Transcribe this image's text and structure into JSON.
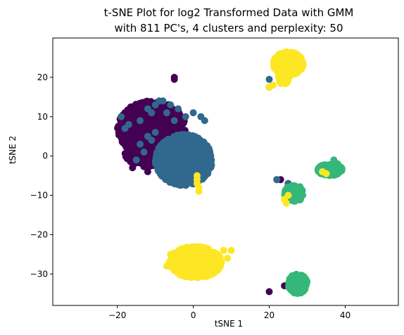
{
  "chart_data": {
    "type": "scatter",
    "title_lines": [
      "t-SNE Plot for log2 Transformed Data with GMM",
      "with 811 PC's, 4 clusters and perplexity: 50"
    ],
    "xlabel": "tSNE 1",
    "ylabel": "tSNE 2",
    "xlim": [
      -37,
      54
    ],
    "ylim": [
      -38,
      30
    ],
    "x_ticks": [
      -20,
      0,
      20,
      40
    ],
    "y_ticks": [
      -30,
      -20,
      -10,
      0,
      10,
      20
    ],
    "grid": false,
    "legend": "none",
    "clusters": [
      {
        "label": "0",
        "color": "#440154",
        "blobs": [
          {
            "cx": -11,
            "cy": 7,
            "rx": 9,
            "ry": 7,
            "n": 900
          },
          {
            "cx": -13,
            "cy": 1,
            "rx": 5,
            "ry": 4,
            "n": 150
          }
        ],
        "points": [
          [
            -5,
            19.5
          ],
          [
            -5,
            20
          ],
          [
            -16,
            -3
          ],
          [
            -16,
            -1.5
          ],
          [
            -12,
            -4
          ],
          [
            -8,
            -5
          ],
          [
            -3,
            3.5
          ],
          [
            22,
            -6
          ],
          [
            23,
            -6
          ],
          [
            25,
            -9.5
          ],
          [
            25,
            -7
          ],
          [
            20,
            -34.5
          ],
          [
            24,
            -33
          ]
        ]
      },
      {
        "label": "1",
        "color": "#31688e",
        "blobs": [
          {
            "cx": -2.5,
            "cy": -1,
            "rx": 7.5,
            "ry": 6.5,
            "n": 1200
          }
        ],
        "points": [
          [
            -14,
            9
          ],
          [
            -17,
            8
          ],
          [
            -19,
            10
          ],
          [
            -12,
            12
          ],
          [
            -10,
            13
          ],
          [
            -9,
            14
          ],
          [
            -8,
            14
          ],
          [
            -6,
            13
          ],
          [
            -7,
            11
          ],
          [
            -11,
            11
          ],
          [
            -5,
            9
          ],
          [
            -12,
            5
          ],
          [
            -11,
            4
          ],
          [
            -14,
            3
          ],
          [
            -13,
            1
          ],
          [
            -15,
            -1
          ],
          [
            -10,
            6
          ],
          [
            -18,
            7
          ],
          [
            3,
            9
          ],
          [
            2,
            10
          ],
          [
            0,
            11
          ],
          [
            -2,
            10
          ],
          [
            -4,
            12
          ],
          [
            20,
            19.5
          ],
          [
            20,
            17.5
          ],
          [
            22,
            -6
          ],
          [
            25,
            -7
          ],
          [
            24.5,
            -9
          ],
          [
            26,
            -9.5
          ],
          [
            26,
            -8
          ],
          [
            25.5,
            -10
          ],
          [
            27,
            -9
          ],
          [
            26.5,
            -33.5
          ],
          [
            26,
            -34
          ]
        ]
      },
      {
        "label": "2",
        "color": "#35b779",
        "blobs": [
          {
            "cx": 26.5,
            "cy": -9.5,
            "rx": 2.5,
            "ry": 2.2,
            "n": 120
          },
          {
            "cx": 36,
            "cy": -3.5,
            "rx": 3.2,
            "ry": 1.5,
            "n": 220
          },
          {
            "cx": 27.5,
            "cy": -32.5,
            "rx": 2.5,
            "ry": 2.5,
            "n": 180
          }
        ],
        "points": [
          [
            37,
            -1
          ],
          [
            38,
            -2
          ],
          [
            33.5,
            -3
          ],
          [
            34,
            -4
          ]
        ]
      },
      {
        "label": "3",
        "color": "#fde725",
        "blobs": [
          {
            "cx": 25,
            "cy": 23.5,
            "rx": 4,
            "ry": 3,
            "n": 320
          },
          {
            "cx": 24,
            "cy": 20,
            "rx": 1.6,
            "ry": 2,
            "n": 60
          },
          {
            "cx": 0.5,
            "cy": -27,
            "rx": 7,
            "ry": 4,
            "n": 800
          }
        ],
        "points": [
          [
            1,
            -6
          ],
          [
            1,
            -7
          ],
          [
            1.5,
            -8
          ],
          [
            1.5,
            -9
          ],
          [
            1,
            -5
          ],
          [
            21,
            18
          ],
          [
            20,
            17.5
          ],
          [
            24,
            -11
          ],
          [
            25,
            -10
          ],
          [
            24.5,
            -12
          ],
          [
            10,
            -24
          ],
          [
            8,
            -24
          ],
          [
            9,
            -26
          ],
          [
            34,
            -4
          ],
          [
            35,
            -4.5
          ],
          [
            -7,
            -28
          ],
          [
            -6,
            -25
          ]
        ]
      }
    ]
  }
}
